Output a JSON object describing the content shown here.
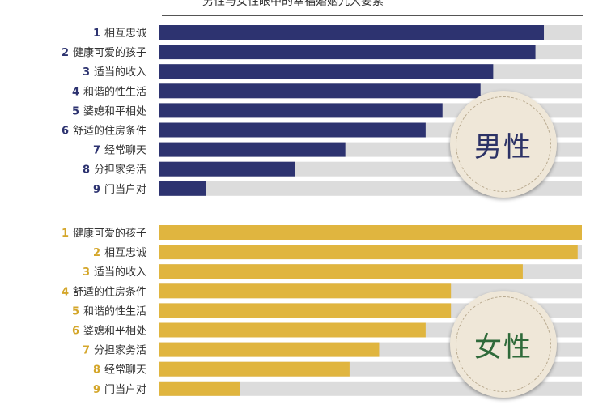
{
  "title": "男性与女性眼中的幸福婚姻九大要素",
  "badges": {
    "male": "男性",
    "female": "女性"
  },
  "colors": {
    "male_bar": "#2d3370",
    "female_bar": "#e0b53f",
    "track": "#dcdcdc",
    "male_rank": "#2d3370",
    "female_rank": "#d4a62a"
  },
  "chart_data": [
    {
      "type": "bar",
      "orientation": "horizontal",
      "name": "男性",
      "ranks": [
        "1",
        "2",
        "3",
        "4",
        "5",
        "6",
        "7",
        "8",
        "9"
      ],
      "categories": [
        "相互忠诚",
        "健康可爱的孩子",
        "适当的收入",
        "和谐的性生活",
        "婆媳和平相处",
        "舒适的住房条件",
        "经常聊天",
        "分担家务活",
        "门当户对"
      ],
      "values": [
        91,
        89,
        79,
        76,
        67,
        63,
        44,
        32,
        11
      ],
      "xlim": [
        0,
        100
      ],
      "grid": false
    },
    {
      "type": "bar",
      "orientation": "horizontal",
      "name": "女性",
      "ranks": [
        "1",
        "2",
        "3",
        "4",
        "5",
        "6",
        "7",
        "8",
        "9"
      ],
      "categories": [
        "健康可爱的孩子",
        "相互忠诚",
        "适当的收入",
        "舒适的住房条件",
        "和谐的性生活",
        "婆媳和平相处",
        "分担家务活",
        "经常聊天",
        "门当户对"
      ],
      "values": [
        100,
        99,
        86,
        69,
        69,
        63,
        52,
        45,
        19
      ],
      "xlim": [
        0,
        100
      ],
      "grid": false
    }
  ]
}
